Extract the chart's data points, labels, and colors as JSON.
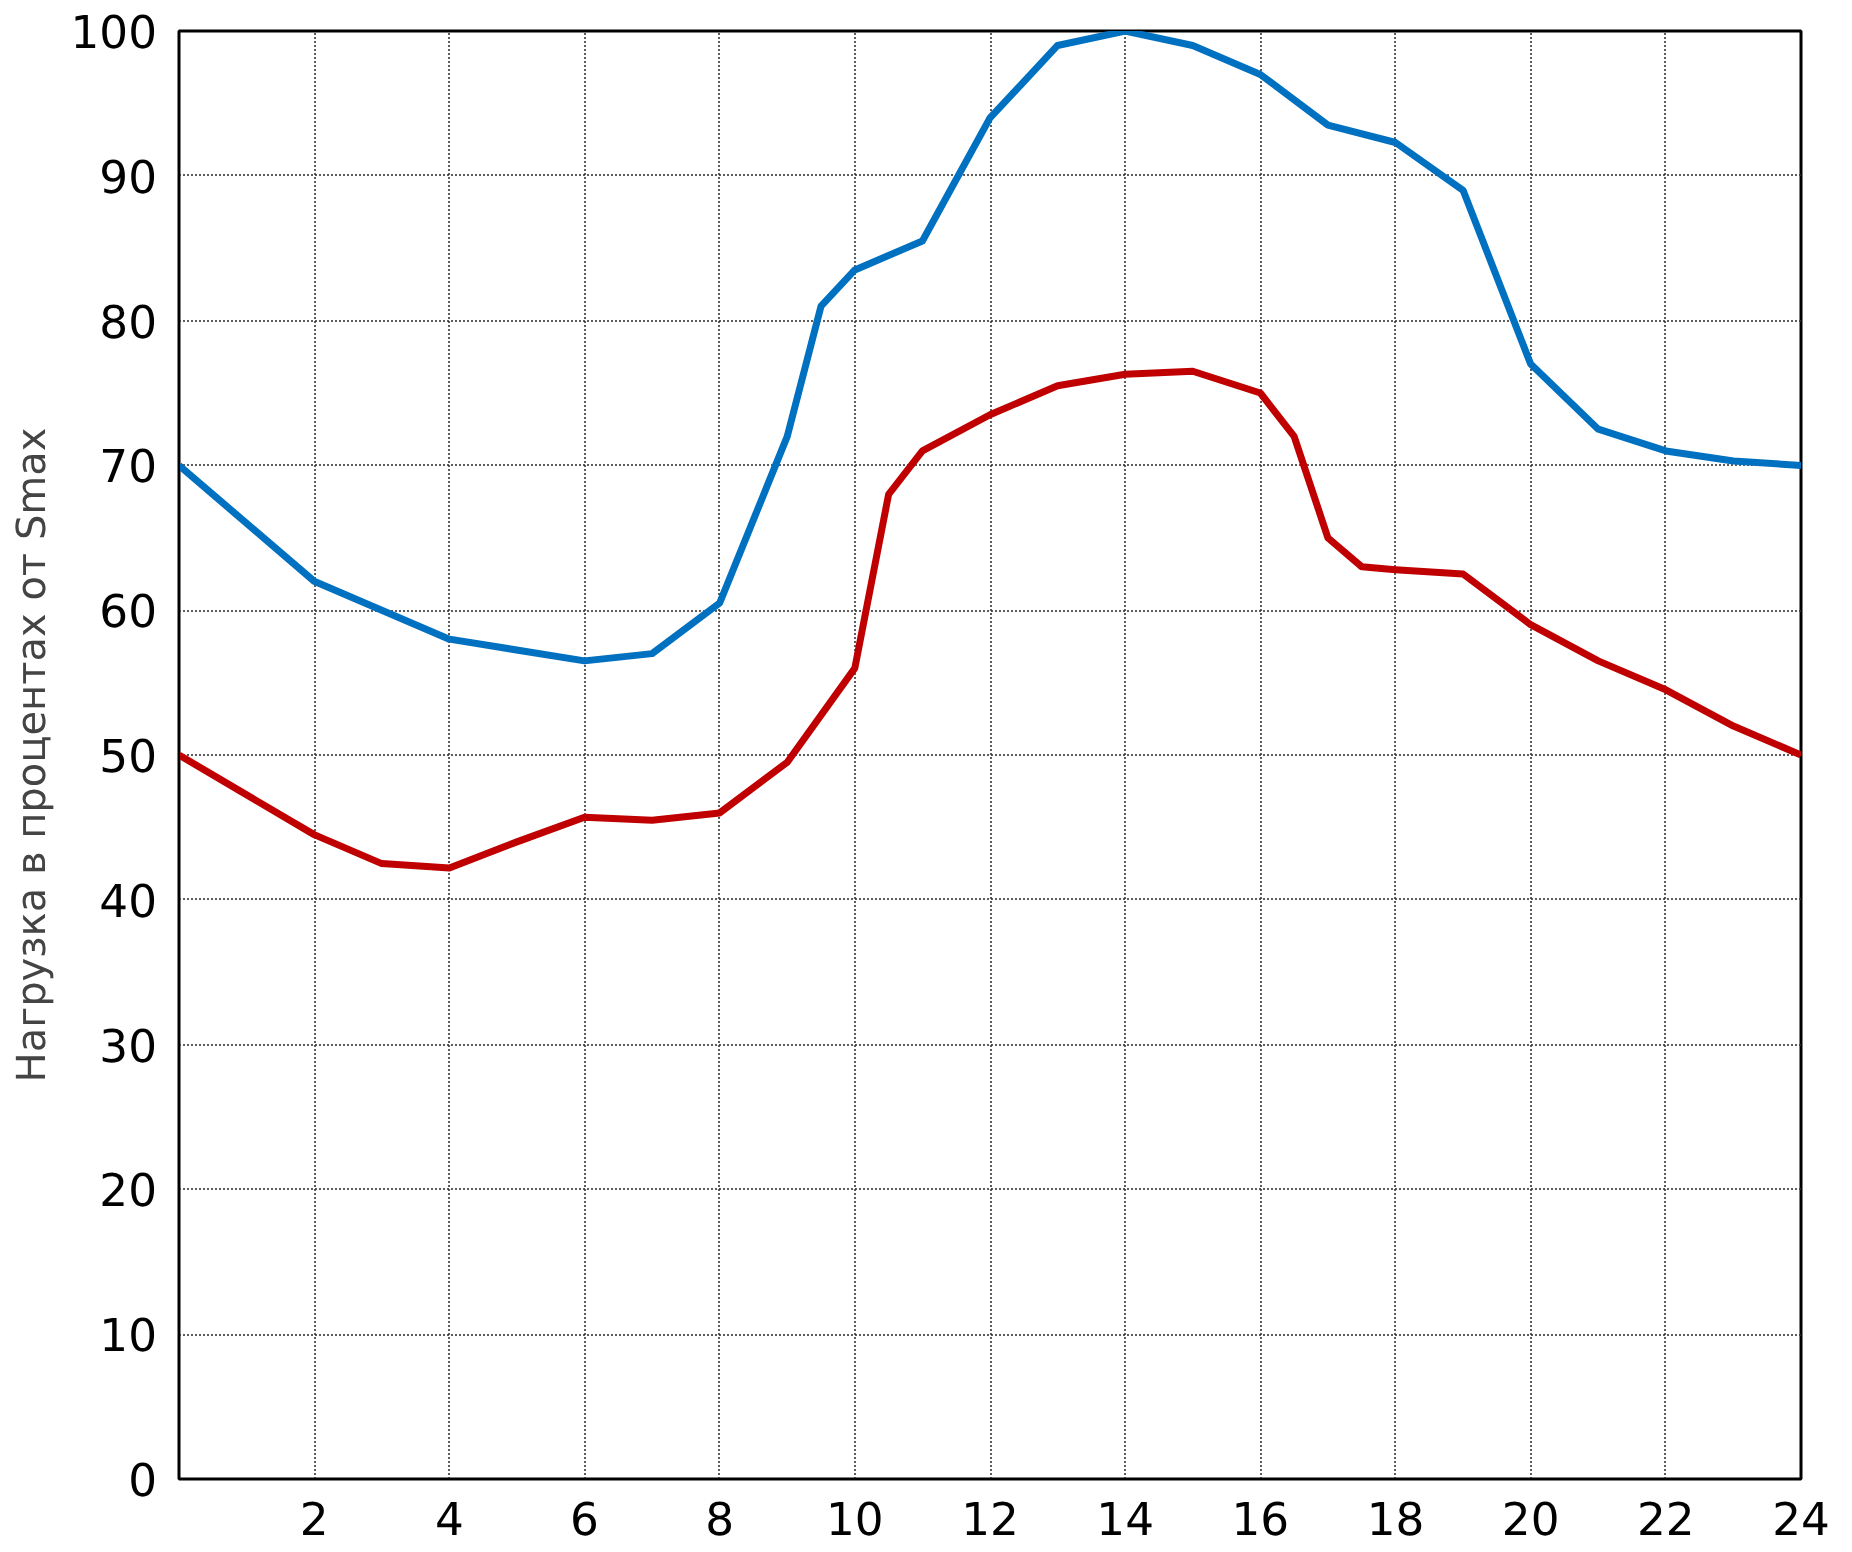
{
  "chart_data": {
    "type": "line",
    "ylabel": "Нагрузка в процентах от Smax",
    "x": [
      0,
      2,
      4,
      6,
      7,
      8,
      9,
      9.5,
      10,
      11,
      12,
      13,
      14,
      15,
      16,
      17,
      18,
      19,
      20,
      21,
      22,
      23,
      24
    ],
    "series": [
      {
        "color": "#0070c0",
        "values": [
          70,
          62,
          58,
          56.5,
          57,
          60.5,
          72,
          81,
          83.5,
          85.5,
          94,
          99,
          100,
          99,
          97,
          93.5,
          92.3,
          89,
          77,
          72.5,
          71,
          70.3,
          70
        ]
      },
      {
        "color": "#c00000",
        "x": [
          0,
          2,
          3,
          4,
          5,
          6,
          7,
          8,
          9,
          10,
          10.5,
          11,
          12,
          13,
          14,
          15,
          16,
          16.5,
          17,
          17.5,
          18,
          19,
          20,
          21,
          22,
          23,
          24
        ],
        "values": [
          50,
          44.5,
          42.5,
          42.2,
          44,
          45.7,
          45.5,
          46,
          49.5,
          56,
          68,
          71,
          73.5,
          75.5,
          76.3,
          76.5,
          75,
          72,
          65,
          63,
          62.8,
          62.5,
          59,
          56.5,
          54.5,
          52,
          50
        ]
      }
    ],
    "xlim": [
      0,
      24
    ],
    "ylim": [
      0,
      100
    ],
    "xticks": [
      2,
      4,
      6,
      8,
      10,
      12,
      14,
      16,
      18,
      20,
      22,
      24
    ],
    "yticks": [
      0,
      10,
      20,
      30,
      40,
      50,
      60,
      70,
      80,
      90,
      100
    ],
    "grid": true,
    "line_style": "solid",
    "marker": "none"
  }
}
